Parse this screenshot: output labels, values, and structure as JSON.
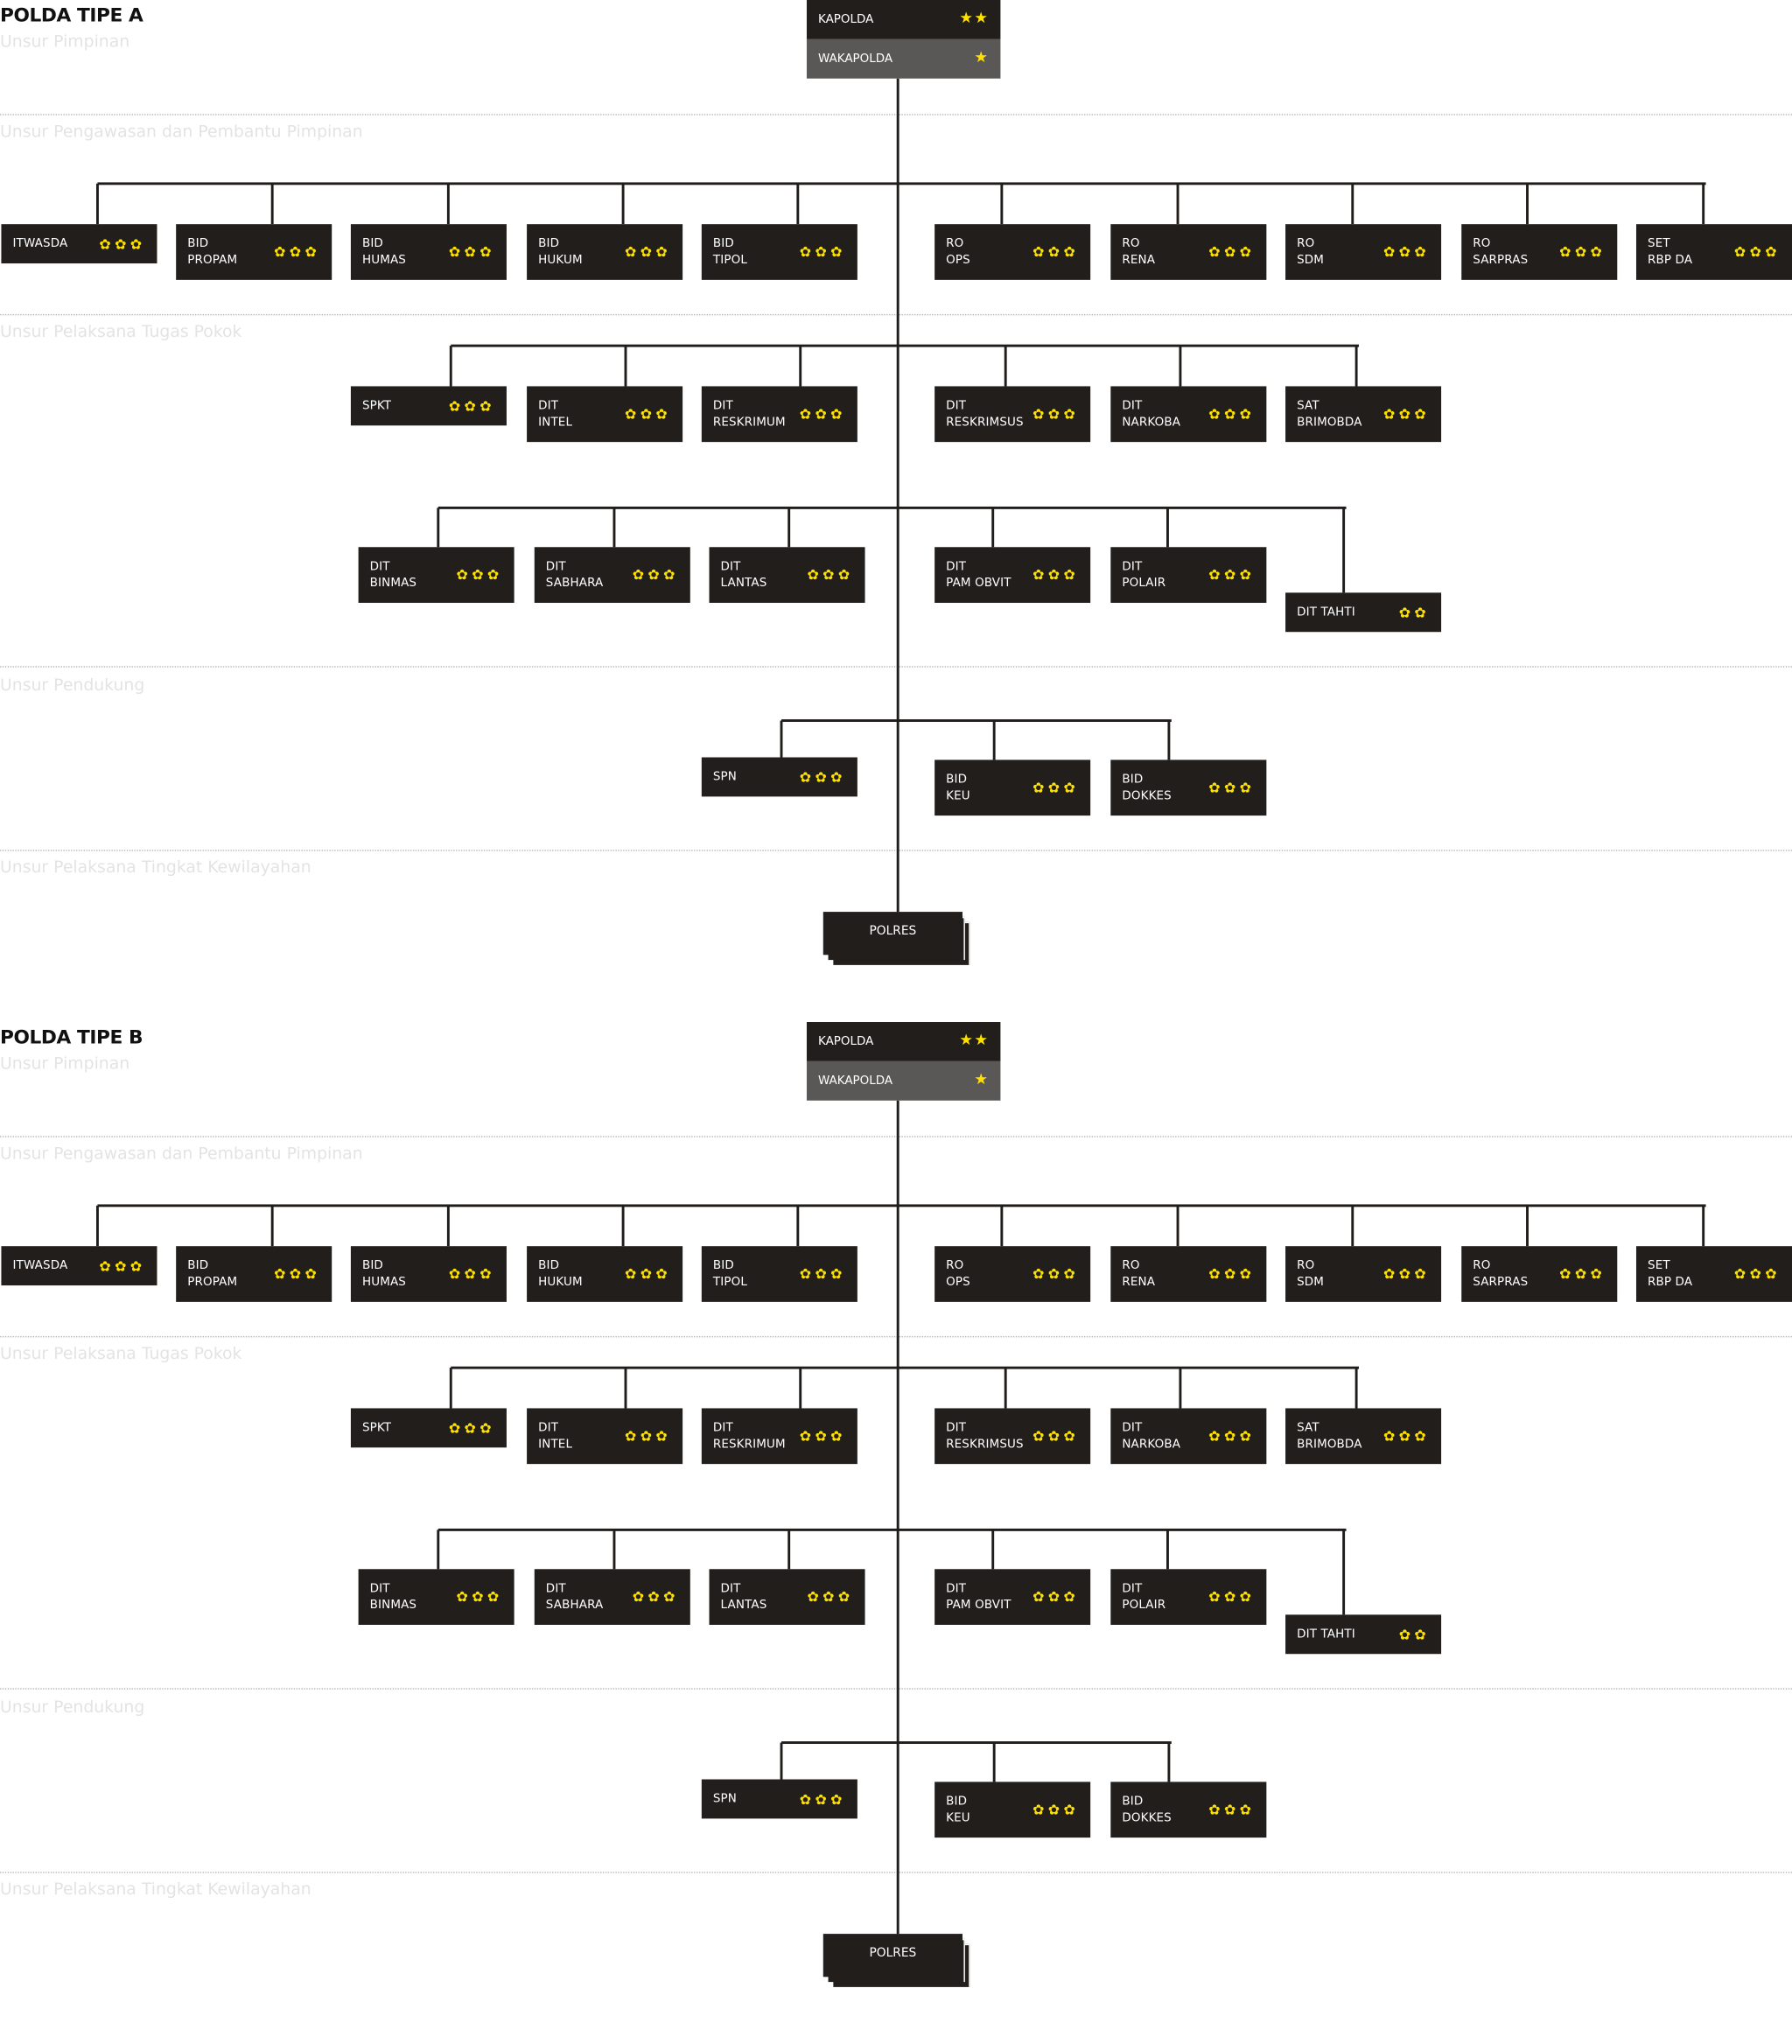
{
  "colors": {
    "box": "#211e1c",
    "wakapolda": "#5a5857",
    "rank": "#ffe100",
    "level_label": "#e3e3e3"
  },
  "rank_icons": {
    "star": "★",
    "flower": "✿"
  },
  "sections": [
    {
      "title": "POLDA TIPE A",
      "levels": [
        "Unsur Pimpinan",
        "Unsur Pengawasan dan Pembantu Pimpinan",
        "Unsur Pelaksana Tugas Pokok",
        "Unsur Pendukung",
        "Unsur Pelaksana Tingkat Kewilayahan"
      ],
      "leaders": [
        {
          "label": "KAPOLDA",
          "rank": "star",
          "count": 2
        },
        {
          "label": "WAKAPOLDA",
          "rank": "star",
          "count": 1
        }
      ],
      "rows": [
        [
          {
            "label": "ITWASDA",
            "count": 3
          },
          {
            "label": "BID\nPROPAM",
            "count": 3
          },
          {
            "label": "BID\nHUMAS",
            "count": 3
          },
          {
            "label": "BID\nHUKUM",
            "count": 3
          },
          {
            "label": "BID\nTIPOL",
            "count": 3
          },
          {
            "label": "RO\nOPS",
            "count": 3
          },
          {
            "label": "RO\nRENA",
            "count": 3
          },
          {
            "label": "RO\nSDM",
            "count": 3
          },
          {
            "label": "RO\nSARPRAS",
            "count": 3
          },
          {
            "label": "SET\nRBP DA",
            "count": 3
          }
        ],
        [
          {
            "label": "SPKT",
            "count": 3
          },
          {
            "label": "DIT\nINTEL",
            "count": 3
          },
          {
            "label": "DIT\nRESKRIMUM",
            "count": 3
          },
          {
            "label": "DIT\nRESKRIMSUS",
            "count": 3
          },
          {
            "label": "DIT\nNARKOBA",
            "count": 3
          },
          {
            "label": "SAT\nBRIMOBDA",
            "count": 3
          }
        ],
        [
          {
            "label": "DIT\nBINMAS",
            "count": 3
          },
          {
            "label": "DIT\nSABHARA",
            "count": 3
          },
          {
            "label": "DIT\nLANTAS",
            "count": 3
          },
          {
            "label": "DIT\nPAM OBVIT",
            "count": 3
          },
          {
            "label": "DIT\nPOLAIR",
            "count": 3
          },
          {
            "label": "DIT TAHTI",
            "count": 2
          }
        ],
        [
          {
            "label": "SPN",
            "count": 3
          },
          {
            "label": "BID\nKEU",
            "count": 3
          },
          {
            "label": "BID\nDOKKES",
            "count": 3
          }
        ]
      ],
      "regional": "POLRES"
    },
    {
      "title": "POLDA TIPE B",
      "levels": [
        "Unsur Pimpinan",
        "Unsur Pengawasan dan Pembantu Pimpinan",
        "Unsur Pelaksana Tugas Pokok",
        "Unsur Pendukung",
        "Unsur Pelaksana Tingkat Kewilayahan"
      ],
      "leaders": [
        {
          "label": "KAPOLDA",
          "rank": "star",
          "count": 2
        },
        {
          "label": "WAKAPOLDA",
          "rank": "star",
          "count": 1
        }
      ],
      "rows": [
        [
          {
            "label": "ITWASDA",
            "count": 3
          },
          {
            "label": "BID\nPROPAM",
            "count": 3
          },
          {
            "label": "BID\nHUMAS",
            "count": 3
          },
          {
            "label": "BID\nHUKUM",
            "count": 3
          },
          {
            "label": "BID\nTIPOL",
            "count": 3
          },
          {
            "label": "RO\nOPS",
            "count": 3
          },
          {
            "label": "RO\nRENA",
            "count": 3
          },
          {
            "label": "RO\nSDM",
            "count": 3
          },
          {
            "label": "RO\nSARPRAS",
            "count": 3
          },
          {
            "label": "SET\nRBP DA",
            "count": 3
          }
        ],
        [
          {
            "label": "SPKT",
            "count": 3
          },
          {
            "label": "DIT\nINTEL",
            "count": 3
          },
          {
            "label": "DIT\nRESKRIMUM",
            "count": 3
          },
          {
            "label": "DIT\nRESKRIMSUS",
            "count": 3
          },
          {
            "label": "DIT\nNARKOBA",
            "count": 3
          },
          {
            "label": "SAT\nBRIMOBDA",
            "count": 3
          }
        ],
        [
          {
            "label": "DIT\nBINMAS",
            "count": 3
          },
          {
            "label": "DIT\nSABHARA",
            "count": 3
          },
          {
            "label": "DIT\nLANTAS",
            "count": 3
          },
          {
            "label": "DIT\nPAM OBVIT",
            "count": 3
          },
          {
            "label": "DIT\nPOLAIR",
            "count": 3
          },
          {
            "label": "DIT TAHTI",
            "count": 2
          }
        ],
        [
          {
            "label": "SPN",
            "count": 3
          },
          {
            "label": "BID\nKEU",
            "count": 3
          },
          {
            "label": "BID\nDOKKES",
            "count": 3
          }
        ]
      ],
      "regional": "POLRES"
    }
  ]
}
